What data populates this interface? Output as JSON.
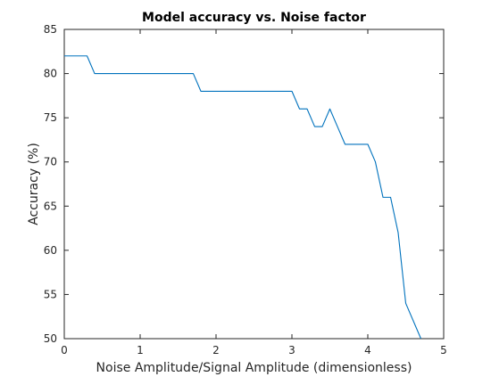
{
  "chart_data": {
    "type": "line",
    "title": "Model accuracy vs. Noise factor",
    "xlabel": "Noise Amplitude/Signal Amplitude (dimensionless)",
    "ylabel": "Accuracy  (%)",
    "xlim": [
      0,
      5
    ],
    "ylim": [
      50,
      85
    ],
    "xticks": [
      0,
      1,
      2,
      3,
      4,
      5
    ],
    "yticks": [
      50,
      55,
      60,
      65,
      70,
      75,
      80,
      85
    ],
    "grid": false,
    "series": [
      {
        "color": "#0072bd",
        "x": [
          0,
          0.3,
          0.4,
          1.7,
          1.8,
          3.0,
          3.1,
          3.2,
          3.3,
          3.4,
          3.5,
          3.7,
          4.0,
          4.1,
          4.2,
          4.3,
          4.4,
          4.5,
          4.7
        ],
        "y": [
          82,
          82,
          80,
          80,
          78,
          78,
          76,
          76,
          74,
          74,
          76,
          72,
          72,
          70,
          66,
          66,
          62,
          54,
          50
        ]
      }
    ]
  }
}
